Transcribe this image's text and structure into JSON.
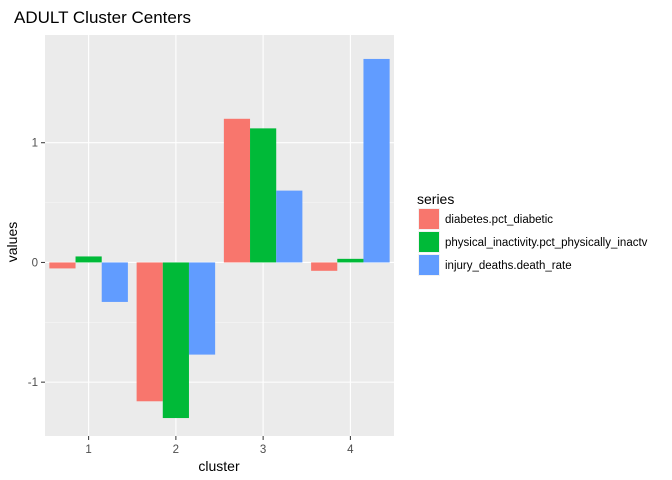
{
  "chart_data": {
    "type": "bar",
    "title": "ADULT Cluster Centers",
    "xlabel": "cluster",
    "ylabel": "values",
    "categories": [
      "1",
      "2",
      "3",
      "4"
    ],
    "series": [
      {
        "name": "diabetes.pct_diabetic",
        "color": "#F8766D",
        "values": [
          -0.05,
          -1.16,
          1.2,
          -0.07
        ]
      },
      {
        "name": "physical_inactivity.pct_physically_inactv",
        "color": "#00BA38",
        "values": [
          0.05,
          -1.3,
          1.12,
          0.03
        ]
      },
      {
        "name": "injury_deaths.death_rate",
        "color": "#619CFF",
        "values": [
          -0.33,
          -0.77,
          0.6,
          1.7
        ]
      }
    ],
    "ylim": [
      -1.45,
      1.9
    ],
    "yticks": [
      -1,
      0,
      1
    ],
    "ytick_labels": [
      "-1",
      "0",
      "1"
    ],
    "grid": true,
    "legend_title": "series",
    "legend_position": "right"
  }
}
